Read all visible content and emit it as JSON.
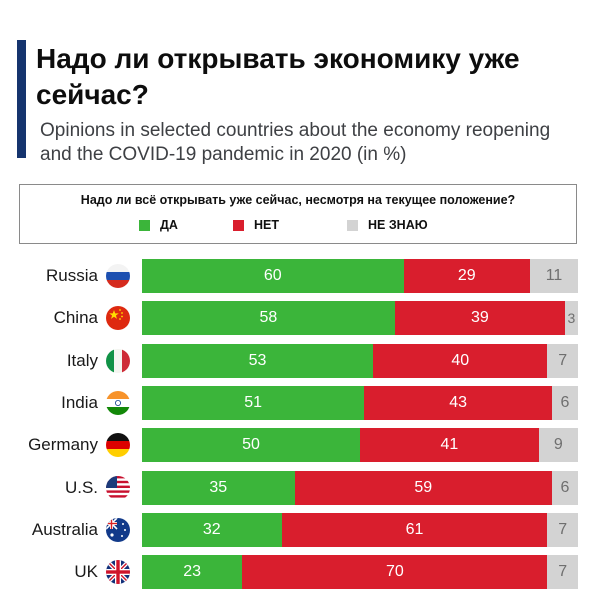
{
  "title": "Надо ли открывать экономику уже сейчас?",
  "subtitle": "Opinions in selected countries about the economy reopening and the COVID-19 pandemic in 2020 (in %)",
  "legend": {
    "question": "Надо ли всё открывать уже сейчас, несмотря на текущее положение?",
    "items": [
      {
        "label": "ДА",
        "color": "#3bb53a"
      },
      {
        "label": "НЕТ",
        "color": "#d91e2d"
      },
      {
        "label": "НЕ ЗНАЮ",
        "color": "#d3d3d3"
      }
    ]
  },
  "chart_data": {
    "type": "bar",
    "orientation": "horizontal",
    "stacked": true,
    "categories": [
      "Russia",
      "China",
      "Italy",
      "India",
      "Germany",
      "U.S.",
      "Australia",
      "UK"
    ],
    "flags": [
      "russia-flag-icon",
      "china-flag-icon",
      "italy-flag-icon",
      "india-flag-icon",
      "germany-flag-icon",
      "us-flag-icon",
      "australia-flag-icon",
      "uk-flag-icon"
    ],
    "series": [
      {
        "name": "ДА",
        "color": "#3bb53a",
        "values": [
          60,
          58,
          53,
          51,
          50,
          35,
          32,
          23
        ]
      },
      {
        "name": "НЕТ",
        "color": "#d91e2d",
        "values": [
          29,
          39,
          40,
          43,
          41,
          59,
          61,
          70
        ]
      },
      {
        "name": "НЕ ЗНАЮ",
        "color": "#d3d3d3",
        "values": [
          11,
          3,
          7,
          6,
          9,
          6,
          7,
          7
        ]
      }
    ],
    "xlim": [
      0,
      100
    ],
    "grid": false,
    "legend_position": "top"
  }
}
